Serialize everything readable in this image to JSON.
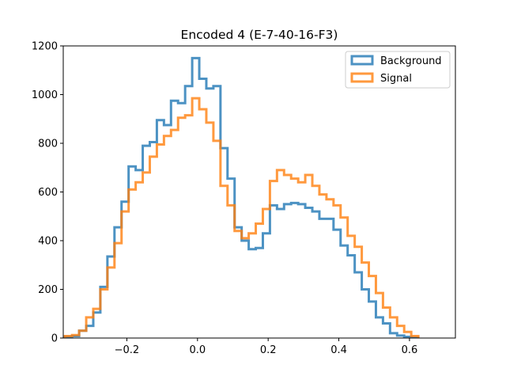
{
  "chart_data": {
    "type": "histogram-step",
    "title": "Encoded 4 (E-7-40-16-F3)",
    "xlabel": "",
    "ylabel": "",
    "xlim": [
      -0.38,
      0.73
    ],
    "ylim": [
      0,
      1200
    ],
    "xticks": [
      -0.2,
      0.0,
      0.2,
      0.4,
      0.6
    ],
    "xtick_labels": [
      "−0.2",
      "0.0",
      "0.2",
      "0.4",
      "0.6"
    ],
    "yticks": [
      0,
      200,
      400,
      600,
      800,
      1000,
      1200
    ],
    "ytick_labels": [
      "0",
      "200",
      "400",
      "600",
      "800",
      "1000",
      "1200"
    ],
    "legend_position": "top-right",
    "series": [
      {
        "name": "Background",
        "color": "#1f77b4",
        "bin_start": -0.375,
        "bin_width": 0.02,
        "values": [
          5,
          8,
          30,
          50,
          105,
          210,
          335,
          455,
          560,
          705,
          690,
          790,
          805,
          895,
          875,
          975,
          965,
          1035,
          1150,
          1065,
          1025,
          1035,
          780,
          655,
          455,
          400,
          365,
          370,
          430,
          545,
          530,
          550,
          555,
          550,
          535,
          520,
          490,
          490,
          445,
          380,
          340,
          270,
          200,
          150,
          85,
          60,
          20,
          10,
          5,
          2
        ]
      },
      {
        "name": "Signal",
        "color": "#ff7f0e",
        "bin_start": -0.375,
        "bin_width": 0.02,
        "values": [
          8,
          12,
          30,
          85,
          120,
          200,
          290,
          390,
          520,
          610,
          640,
          680,
          745,
          795,
          830,
          855,
          905,
          915,
          985,
          940,
          885,
          810,
          625,
          545,
          440,
          410,
          430,
          470,
          530,
          645,
          690,
          670,
          655,
          640,
          670,
          625,
          590,
          570,
          545,
          495,
          420,
          375,
          310,
          255,
          185,
          125,
          85,
          50,
          25,
          8
        ]
      }
    ]
  }
}
